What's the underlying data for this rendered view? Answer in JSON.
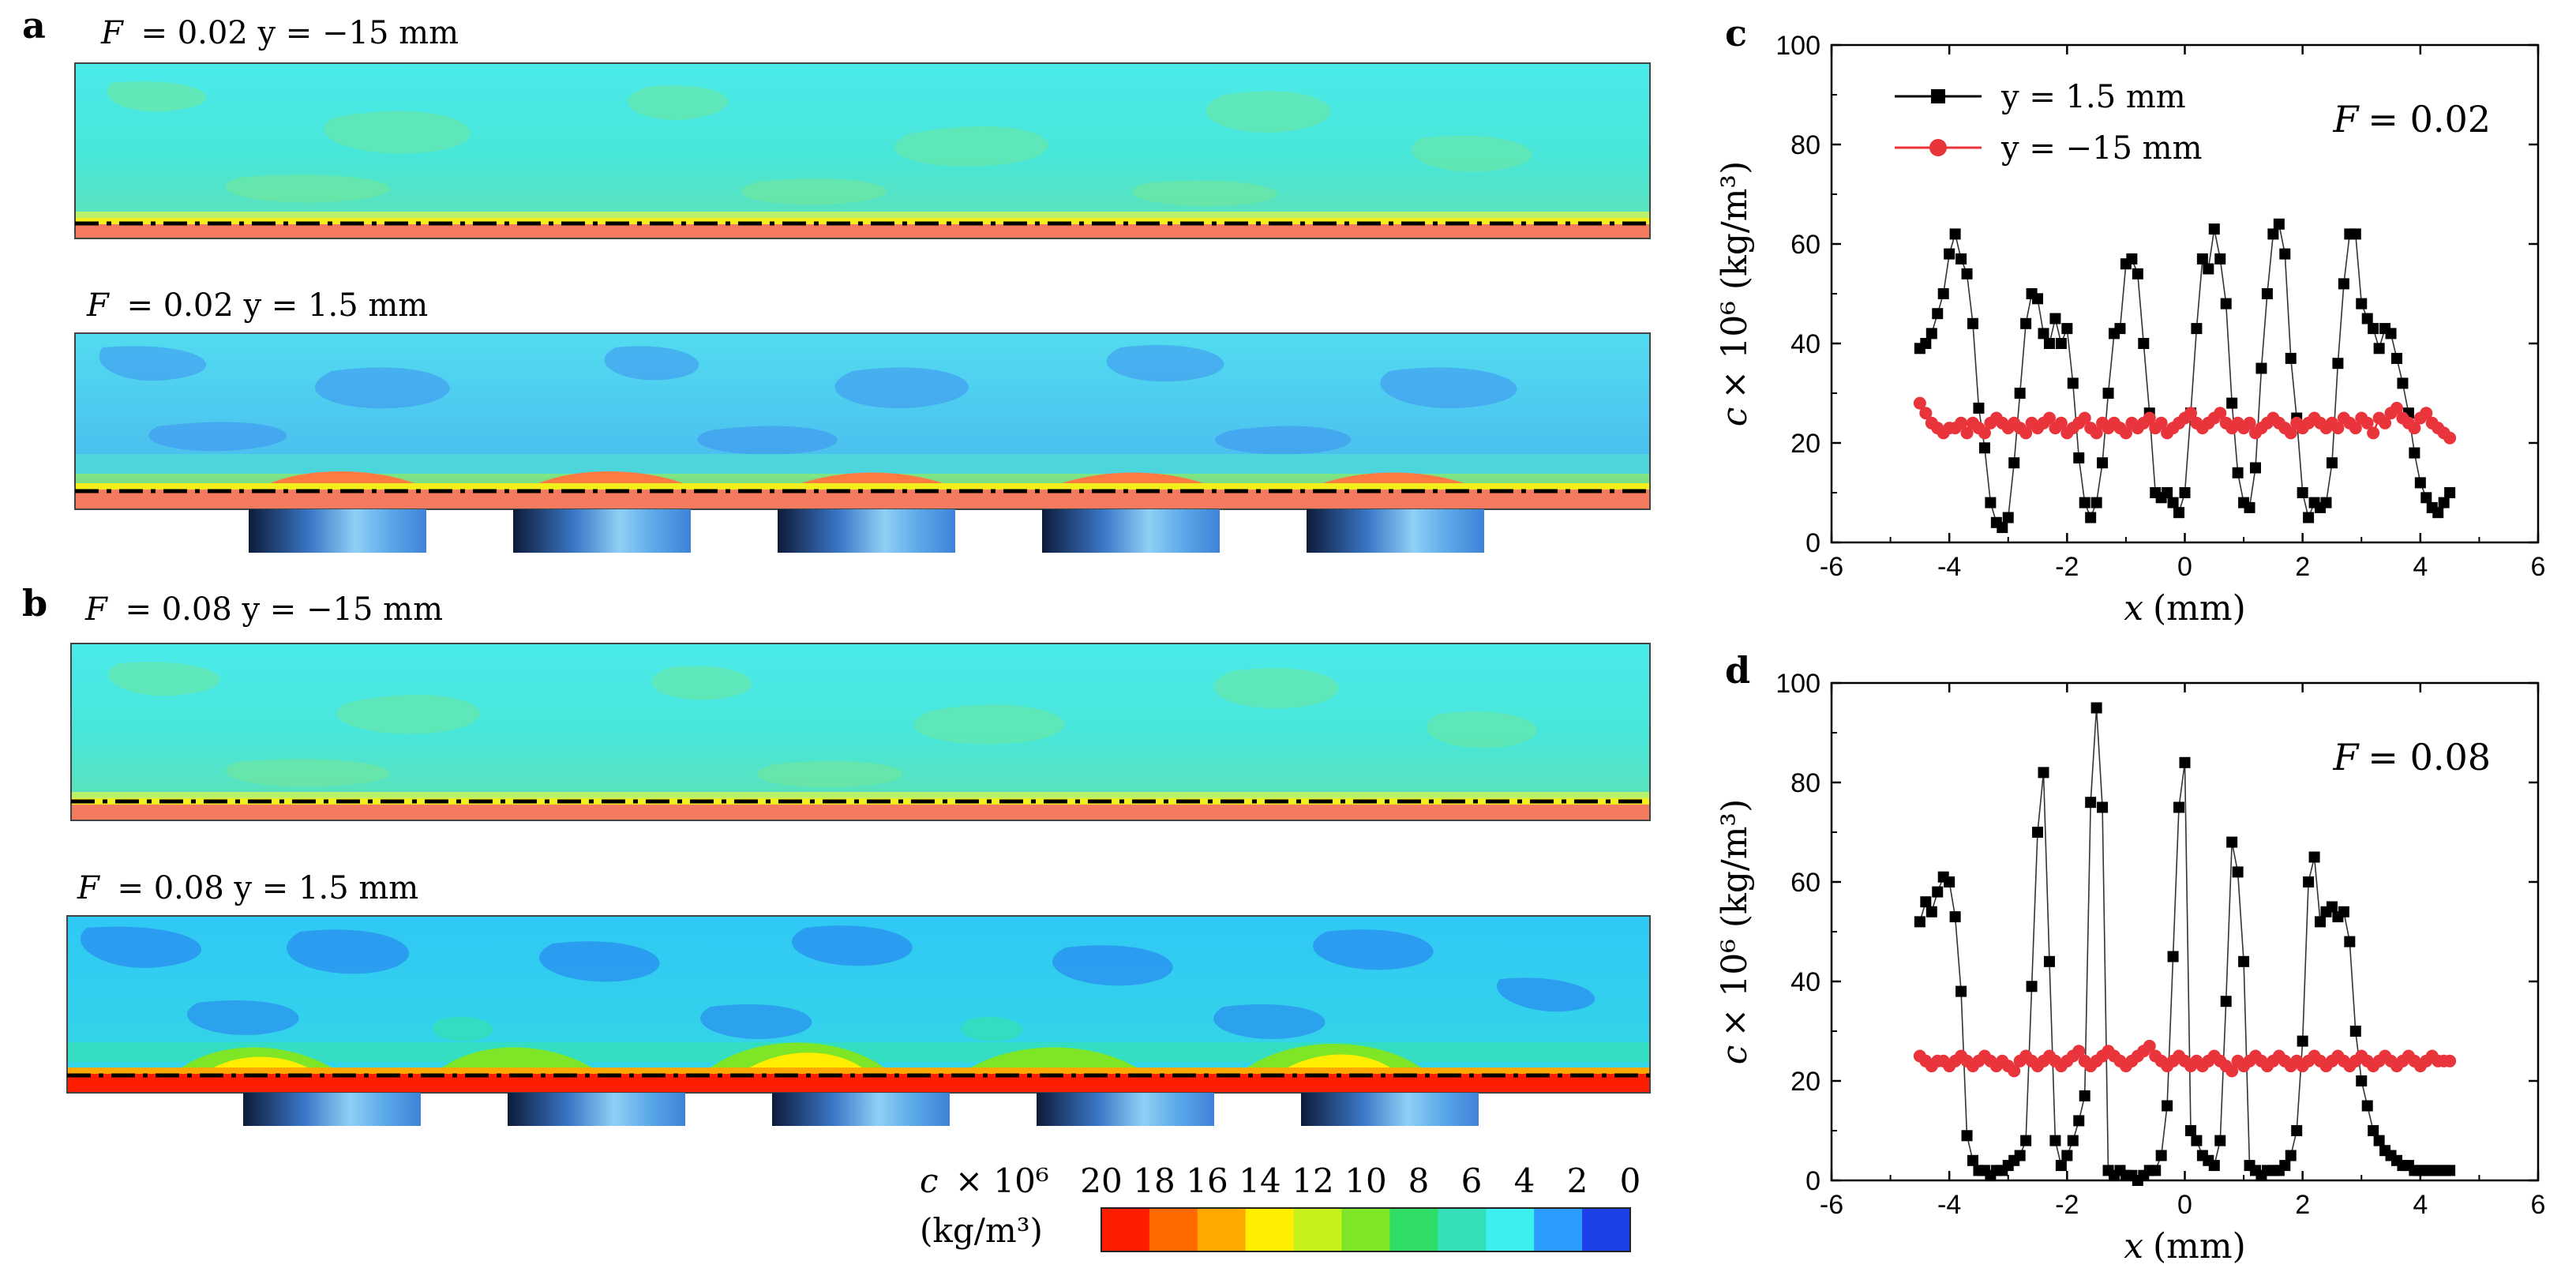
{
  "panels": {
    "a": {
      "letter": "a",
      "top": {
        "F_label": "F",
        "title": "= 0.02 y = −15 mm"
      },
      "bottom": {
        "F_label": "F",
        "title": "= 0.02 y = 1.5 mm"
      }
    },
    "b": {
      "letter": "b",
      "top": {
        "F_label": "F",
        "title": "= 0.08 y = −15 mm"
      },
      "bottom": {
        "F_label": "F",
        "title": "= 0.08 y = 1.5 mm"
      }
    }
  },
  "colorbar": {
    "label_line1": "c × 10⁶",
    "label_line2": "(kg/m³)",
    "ticks": [
      "20",
      "18",
      "16",
      "14",
      "12",
      "10",
      "8",
      "6",
      "4",
      "2",
      "0"
    ],
    "colors": [
      "#ff1d00",
      "#ff6a00",
      "#ffa800",
      "#ffee00",
      "#c5f21a",
      "#7ee626",
      "#2fdc66",
      "#33e0b8",
      "#3cf0f0",
      "#2c9bff",
      "#1e40e8"
    ]
  },
  "chart_data": [
    {
      "id": "c",
      "type": "line",
      "letter": "c",
      "annotation": "F = 0.02",
      "annotation_var": "F",
      "annotation_val": "= 0.02",
      "xlabel_var": "x",
      "xlabel": "(mm)",
      "ylabel_var": "c",
      "ylabel": "× 10⁶ (kg/m³)",
      "xlim": [
        -6,
        6
      ],
      "ylim": [
        0,
        100
      ],
      "xticks": [
        -6,
        -4,
        -2,
        0,
        2,
        4,
        6
      ],
      "yticks": [
        0,
        20,
        40,
        60,
        80,
        100
      ],
      "legend_position": "top-left",
      "series": [
        {
          "name": "y = 1.5 mm",
          "color": "#000000",
          "marker": "square",
          "x": [
            -4.5,
            -4.4,
            -4.3,
            -4.2,
            -4.1,
            -4.0,
            -3.9,
            -3.8,
            -3.7,
            -3.6,
            -3.5,
            -3.4,
            -3.3,
            -3.2,
            -3.1,
            -3.0,
            -2.9,
            -2.8,
            -2.7,
            -2.6,
            -2.5,
            -2.4,
            -2.3,
            -2.2,
            -2.1,
            -2.0,
            -1.9,
            -1.8,
            -1.7,
            -1.6,
            -1.5,
            -1.4,
            -1.3,
            -1.2,
            -1.1,
            -1.0,
            -0.9,
            -0.8,
            -0.7,
            -0.6,
            -0.5,
            -0.4,
            -0.3,
            -0.2,
            -0.1,
            0.0,
            0.1,
            0.2,
            0.3,
            0.4,
            0.5,
            0.6,
            0.7,
            0.8,
            0.9,
            1.0,
            1.1,
            1.2,
            1.3,
            1.4,
            1.5,
            1.6,
            1.7,
            1.8,
            1.9,
            2.0,
            2.1,
            2.2,
            2.3,
            2.4,
            2.5,
            2.6,
            2.7,
            2.8,
            2.9,
            3.0,
            3.1,
            3.2,
            3.3,
            3.4,
            3.5,
            3.6,
            3.7,
            3.8,
            3.9,
            4.0,
            4.1,
            4.2,
            4.3,
            4.4,
            4.5
          ],
          "y": [
            39,
            40,
            42,
            46,
            50,
            58,
            62,
            57,
            54,
            44,
            27,
            19,
            8,
            4,
            3,
            5,
            16,
            30,
            44,
            50,
            49,
            42,
            40,
            45,
            40,
            43,
            32,
            17,
            8,
            5,
            8,
            16,
            30,
            42,
            43,
            56,
            57,
            54,
            40,
            26,
            10,
            9,
            10,
            8,
            6,
            10,
            26,
            43,
            57,
            55,
            63,
            57,
            48,
            28,
            14,
            8,
            7,
            15,
            35,
            50,
            62,
            64,
            58,
            37,
            25,
            10,
            5,
            8,
            7,
            8,
            16,
            36,
            52,
            62,
            62,
            48,
            45,
            43,
            39,
            43,
            42,
            37,
            32,
            26,
            18,
            12,
            9,
            7,
            6,
            8,
            10
          ]
        },
        {
          "name": "y = −15 mm",
          "color": "#e8343a",
          "marker": "circle",
          "x": [
            -4.5,
            -4.4,
            -4.3,
            -4.2,
            -4.1,
            -4.0,
            -3.9,
            -3.8,
            -3.7,
            -3.6,
            -3.5,
            -3.4,
            -3.3,
            -3.2,
            -3.1,
            -3.0,
            -2.9,
            -2.8,
            -2.7,
            -2.6,
            -2.5,
            -2.4,
            -2.3,
            -2.2,
            -2.1,
            -2.0,
            -1.9,
            -1.8,
            -1.7,
            -1.6,
            -1.5,
            -1.4,
            -1.3,
            -1.2,
            -1.1,
            -1.0,
            -0.9,
            -0.8,
            -0.7,
            -0.6,
            -0.5,
            -0.4,
            -0.3,
            -0.2,
            -0.1,
            0.0,
            0.1,
            0.2,
            0.3,
            0.4,
            0.5,
            0.6,
            0.7,
            0.8,
            0.9,
            1.0,
            1.1,
            1.2,
            1.3,
            1.4,
            1.5,
            1.6,
            1.7,
            1.8,
            1.9,
            2.0,
            2.1,
            2.2,
            2.3,
            2.4,
            2.5,
            2.6,
            2.7,
            2.8,
            2.9,
            3.0,
            3.1,
            3.2,
            3.3,
            3.4,
            3.5,
            3.6,
            3.7,
            3.8,
            3.9,
            4.0,
            4.1,
            4.2,
            4.3,
            4.4,
            4.5
          ],
          "y": [
            28,
            26,
            24,
            23,
            22,
            23,
            23,
            24,
            22,
            24,
            23,
            22,
            24,
            25,
            24,
            23,
            24,
            23,
            22,
            24,
            23,
            24,
            25,
            23,
            24,
            22,
            23,
            24,
            25,
            23,
            22,
            24,
            23,
            24,
            23,
            22,
            24,
            23,
            24,
            25,
            23,
            24,
            22,
            23,
            24,
            25,
            26,
            24,
            23,
            24,
            25,
            26,
            24,
            23,
            24,
            23,
            24,
            22,
            23,
            24,
            25,
            24,
            23,
            22,
            24,
            23,
            24,
            25,
            24,
            23,
            24,
            23,
            25,
            24,
            23,
            25,
            24,
            22,
            25,
            24,
            26,
            27,
            25,
            24,
            23,
            25,
            26,
            24,
            23,
            22,
            21
          ]
        }
      ]
    },
    {
      "id": "d",
      "type": "line",
      "letter": "d",
      "annotation": "F = 0.08",
      "annotation_var": "F",
      "annotation_val": "= 0.08",
      "xlabel_var": "x",
      "xlabel": "(mm)",
      "ylabel_var": "c",
      "ylabel": "× 10⁶ (kg/m³)",
      "xlim": [
        -6,
        6
      ],
      "ylim": [
        0,
        100
      ],
      "xticks": [
        -6,
        -4,
        -2,
        0,
        2,
        4,
        6
      ],
      "yticks": [
        0,
        20,
        40,
        60,
        80,
        100
      ],
      "legend_position": "none",
      "series": [
        {
          "name": "y = 1.5 mm",
          "color": "#000000",
          "marker": "square",
          "x": [
            -4.5,
            -4.4,
            -4.3,
            -4.2,
            -4.1,
            -4.0,
            -3.9,
            -3.8,
            -3.7,
            -3.6,
            -3.5,
            -3.4,
            -3.3,
            -3.2,
            -3.1,
            -3.0,
            -2.9,
            -2.8,
            -2.7,
            -2.6,
            -2.5,
            -2.4,
            -2.3,
            -2.2,
            -2.1,
            -2.0,
            -1.9,
            -1.8,
            -1.7,
            -1.6,
            -1.5,
            -1.4,
            -1.3,
            -1.2,
            -1.1,
            -1.0,
            -0.9,
            -0.8,
            -0.7,
            -0.6,
            -0.5,
            -0.4,
            -0.3,
            -0.2,
            -0.1,
            0.0,
            0.1,
            0.2,
            0.3,
            0.4,
            0.5,
            0.6,
            0.7,
            0.8,
            0.9,
            1.0,
            1.1,
            1.2,
            1.3,
            1.4,
            1.5,
            1.6,
            1.7,
            1.8,
            1.9,
            2.0,
            2.1,
            2.2,
            2.3,
            2.4,
            2.5,
            2.6,
            2.7,
            2.8,
            2.9,
            3.0,
            3.1,
            3.2,
            3.3,
            3.4,
            3.5,
            3.6,
            3.7,
            3.8,
            3.9,
            4.0,
            4.1,
            4.2,
            4.3,
            4.4,
            4.5
          ],
          "y": [
            52,
            56,
            54,
            58,
            61,
            60,
            53,
            38,
            9,
            4,
            2,
            2,
            1,
            2,
            2,
            3,
            4,
            5,
            8,
            39,
            70,
            82,
            44,
            8,
            3,
            5,
            8,
            12,
            17,
            76,
            95,
            75,
            2,
            1,
            2,
            1,
            1,
            0,
            1,
            2,
            2,
            5,
            15,
            45,
            75,
            84,
            10,
            8,
            5,
            4,
            3,
            8,
            36,
            68,
            62,
            44,
            3,
            2,
            1,
            2,
            2,
            2,
            3,
            5,
            10,
            28,
            60,
            65,
            52,
            54,
            55,
            53,
            54,
            48,
            30,
            20,
            15,
            10,
            8,
            6,
            5,
            4,
            3,
            3,
            2,
            2,
            2,
            2,
            2,
            2,
            2
          ]
        },
        {
          "name": "y = −15 mm",
          "color": "#e8343a",
          "marker": "circle",
          "x": [
            -4.5,
            -4.4,
            -4.3,
            -4.2,
            -4.1,
            -4.0,
            -3.9,
            -3.8,
            -3.7,
            -3.6,
            -3.5,
            -3.4,
            -3.3,
            -3.2,
            -3.1,
            -3.0,
            -2.9,
            -2.8,
            -2.7,
            -2.6,
            -2.5,
            -2.4,
            -2.3,
            -2.2,
            -2.1,
            -2.0,
            -1.9,
            -1.8,
            -1.7,
            -1.6,
            -1.5,
            -1.4,
            -1.3,
            -1.2,
            -1.1,
            -1.0,
            -0.9,
            -0.8,
            -0.7,
            -0.6,
            -0.5,
            -0.4,
            -0.3,
            -0.2,
            -0.1,
            0.0,
            0.1,
            0.2,
            0.3,
            0.4,
            0.5,
            0.6,
            0.7,
            0.8,
            0.9,
            1.0,
            1.1,
            1.2,
            1.3,
            1.4,
            1.5,
            1.6,
            1.7,
            1.8,
            1.9,
            2.0,
            2.1,
            2.2,
            2.3,
            2.4,
            2.5,
            2.6,
            2.7,
            2.8,
            2.9,
            3.0,
            3.1,
            3.2,
            3.3,
            3.4,
            3.5,
            3.6,
            3.7,
            3.8,
            3.9,
            4.0,
            4.1,
            4.2,
            4.3,
            4.4,
            4.5
          ],
          "y": [
            25,
            24,
            23,
            24,
            24,
            23,
            24,
            25,
            24,
            23,
            24,
            25,
            24,
            23,
            24,
            23,
            22,
            24,
            25,
            24,
            23,
            24,
            25,
            24,
            23,
            24,
            25,
            26,
            24,
            23,
            24,
            25,
            26,
            25,
            24,
            23,
            24,
            25,
            26,
            27,
            25,
            24,
            23,
            24,
            25,
            24,
            23,
            24,
            23,
            24,
            25,
            24,
            23,
            22,
            24,
            23,
            24,
            25,
            24,
            23,
            24,
            25,
            24,
            23,
            24,
            23,
            24,
            25,
            24,
            23,
            24,
            25,
            24,
            23,
            24,
            25,
            24,
            23,
            24,
            25,
            24,
            23,
            24,
            25,
            24,
            23,
            24,
            25,
            24,
            24,
            24
          ]
        }
      ]
    }
  ]
}
